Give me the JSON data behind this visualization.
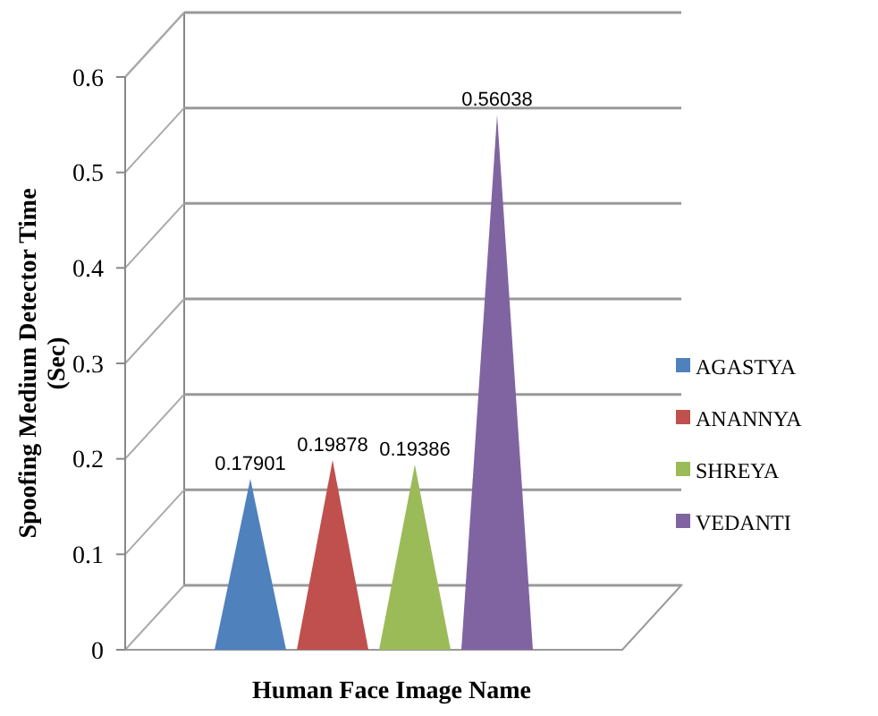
{
  "chart_data": {
    "type": "bar",
    "xlabel": "Human Face Image Name",
    "ylabel": "Spoofing Medium Detector Time (Sec)",
    "categories": [
      null
    ],
    "series": [
      {
        "name": "AGASTYA",
        "color": "#4f81bd",
        "values": [
          0.17901
        ]
      },
      {
        "name": "ANANNYA",
        "color": "#c0504d",
        "values": [
          0.19878
        ]
      },
      {
        "name": "SHREYA",
        "color": "#9bbb59",
        "values": [
          0.19386
        ]
      },
      {
        "name": "VEDANTI",
        "color": "#8064a2",
        "values": [
          0.56038
        ]
      }
    ],
    "ylim": [
      0,
      0.6
    ],
    "yticks": [
      0,
      0.1,
      0.2,
      0.3,
      0.4,
      0.5,
      0.6
    ],
    "grid": "y",
    "legend": "right",
    "data_labels": true
  }
}
